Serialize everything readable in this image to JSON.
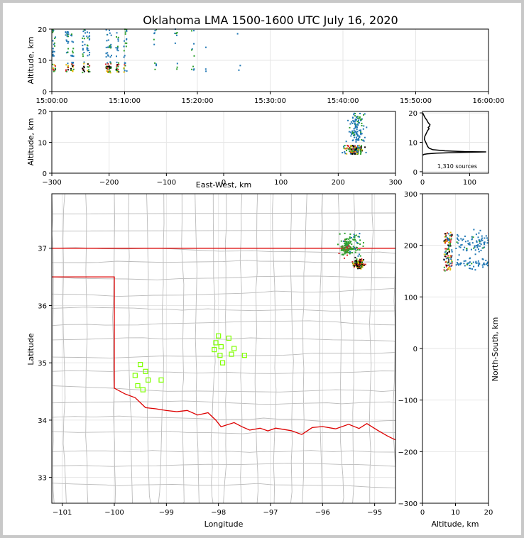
{
  "title": "Oklahoma LMA 1500-1600 UTC July 16, 2020",
  "colors": {
    "early": "#1f77b4",
    "mid": "#2ca02c",
    "late": "#d62728",
    "latest": "#000000",
    "station": "#7fff00",
    "state_border": "#dd0000",
    "county": "#bbbbbb",
    "grid": "#e6e6e6"
  },
  "chart_data": [
    {
      "id": "time-altitude",
      "type": "scatter",
      "xlabel": "",
      "ylabel": "Altitude, km",
      "xticks": [
        "15:00:00",
        "15:10:00",
        "15:20:00",
        "15:30:00",
        "15:40:00",
        "15:50:00",
        "16:00:00"
      ],
      "xlim_minutes": [
        0,
        60
      ],
      "yticks": [
        0,
        10,
        20
      ],
      "ylim": [
        0,
        20
      ],
      "grid": true
    },
    {
      "id": "ew-altitude",
      "type": "scatter",
      "xlabel": "East-West, km",
      "ylabel": "Altitude, km",
      "xticks": [
        -300,
        -200,
        -100,
        0,
        100,
        200,
        300
      ],
      "xlim": [
        -300,
        300
      ],
      "yticks": [
        0,
        10,
        20
      ],
      "ylim": [
        0,
        20
      ],
      "grid": true
    },
    {
      "id": "altitude-histogram",
      "type": "line",
      "annotation": "1,310 sources",
      "xticks": [
        0,
        100
      ],
      "xlim": [
        0,
        140
      ],
      "yticks": [
        0,
        10,
        20
      ],
      "ylim": [
        -0.5,
        20.5
      ],
      "profile": [
        [
          0.5,
          20
        ],
        [
          2,
          19.5
        ],
        [
          4,
          18.8
        ],
        [
          6,
          18.2
        ],
        [
          9,
          17.6
        ],
        [
          11,
          17
        ],
        [
          13,
          16.5
        ],
        [
          16,
          16
        ],
        [
          15,
          15.5
        ],
        [
          12,
          15
        ],
        [
          14,
          14.6
        ],
        [
          11,
          14
        ],
        [
          8,
          13
        ],
        [
          5,
          12
        ],
        [
          4,
          11
        ],
        [
          7,
          10
        ],
        [
          9,
          9.3
        ],
        [
          11,
          8.6
        ],
        [
          14,
          8
        ],
        [
          22,
          7.5
        ],
        [
          48,
          7.1
        ],
        [
          90,
          6.85
        ],
        [
          135,
          6.75
        ],
        [
          80,
          6.55
        ],
        [
          30,
          6.3
        ],
        [
          10,
          6.1
        ],
        [
          3,
          5.9
        ],
        [
          1,
          5.6
        ]
      ],
      "grid": true
    },
    {
      "id": "plan-view",
      "type": "scatter",
      "xlabel": "Longitude",
      "ylabel": "Latitude",
      "xticks": [
        -101,
        -100,
        -99,
        -98,
        -97,
        -96,
        -95
      ],
      "xlim": [
        -101.2,
        -94.6
      ],
      "yticks": [
        33,
        34,
        35,
        36,
        37
      ],
      "ylim": [
        32.55,
        37.95
      ],
      "grid": true,
      "stations": [
        [
          -99.5,
          34.97
        ],
        [
          -99.4,
          34.85
        ],
        [
          -99.6,
          34.78
        ],
        [
          -99.35,
          34.7
        ],
        [
          -99.55,
          34.6
        ],
        [
          -99.45,
          34.53
        ],
        [
          -99.1,
          34.7
        ],
        [
          -98.0,
          35.47
        ],
        [
          -98.05,
          35.35
        ],
        [
          -97.8,
          35.43
        ],
        [
          -97.95,
          35.28
        ],
        [
          -98.08,
          35.23
        ],
        [
          -97.7,
          35.25
        ],
        [
          -97.97,
          35.13
        ],
        [
          -97.75,
          35.15
        ],
        [
          -97.5,
          35.13
        ],
        [
          -97.92,
          35.0
        ]
      ]
    },
    {
      "id": "altitude-northsouth",
      "type": "scatter",
      "xlabel": "Altitude, km",
      "ylabel": "North-South, km",
      "xticks": [
        0,
        10,
        20
      ],
      "xlim": [
        0,
        20
      ],
      "yticks": [
        -300,
        -200,
        -100,
        0,
        100,
        200,
        300
      ],
      "ylim": [
        -300,
        300
      ],
      "grid": true
    }
  ]
}
